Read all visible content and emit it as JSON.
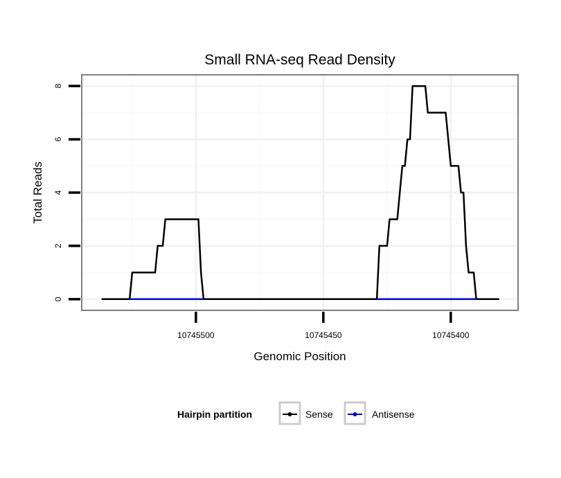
{
  "chart_data": {
    "type": "line",
    "title": "Small RNA-seq Read Density",
    "xlabel": "Genomic Position",
    "ylabel": "Total Reads",
    "xlim": [
      10745544.8,
      10745373.6
    ],
    "x_reversed": true,
    "ylim": [
      -0.42,
      8.42
    ],
    "x_ticks": [
      10745500,
      10745450,
      10745400
    ],
    "x_tick_labels": [
      "10745500",
      "10745450",
      "10745400"
    ],
    "x_minor_grid": [
      10745525,
      10745475,
      10745425
    ],
    "y_ticks": [
      0,
      2,
      4,
      6,
      8
    ],
    "y_tick_labels": [
      "0",
      "2",
      "4",
      "6",
      "8"
    ],
    "y_minor_grid": [
      1,
      3,
      5,
      7
    ],
    "grid": true,
    "legend": {
      "title": "Hairpin partition",
      "placement": "bottom",
      "entries": [
        "Sense",
        "Antisense"
      ]
    },
    "series": [
      {
        "name": "Sense",
        "color": "#000000",
        "x": [
          10745537,
          10745526,
          10745525,
          10745516,
          10745515,
          10745513,
          10745512,
          10745499,
          10745498,
          10745497,
          10745429,
          10745428,
          10745425,
          10745424,
          10745421,
          10745419,
          10745418,
          10745417,
          10745416,
          10745415,
          10745410,
          10745409,
          10745402,
          10745400,
          10745397,
          10745396,
          10745395,
          10745394,
          10745393,
          10745391,
          10745390,
          10745381
        ],
        "y": [
          0,
          0,
          1,
          1,
          2,
          2,
          3,
          3,
          1,
          0,
          0,
          2,
          2,
          3,
          3,
          5,
          5,
          6,
          6,
          8,
          8,
          7,
          7,
          5,
          5,
          4,
          4,
          2,
          1,
          1,
          0,
          0
        ]
      },
      {
        "name": "Antisense",
        "color": "#0000ff",
        "segments": [
          {
            "x": [
              10745526,
              10745497
            ],
            "y": [
              0,
              0
            ]
          },
          {
            "x": [
              10745429,
              10745390
            ],
            "y": [
              0,
              0
            ]
          }
        ]
      }
    ]
  }
}
